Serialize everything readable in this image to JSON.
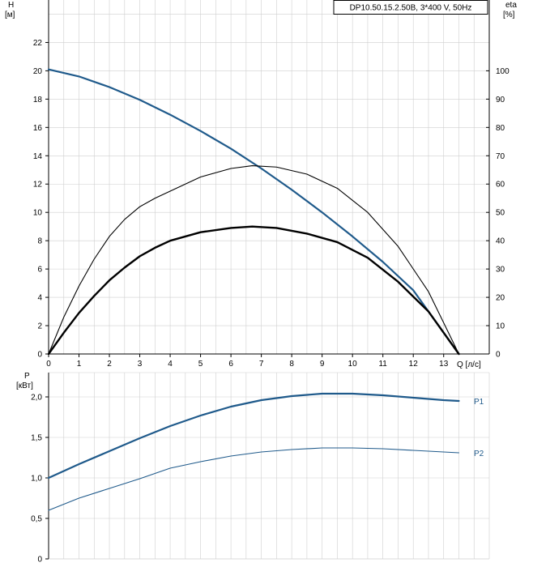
{
  "colors": {
    "blue": "#1f5a8b",
    "black": "#000000",
    "grid": "#cfcfcf"
  },
  "chart_data": [
    {
      "type": "line",
      "title": "DP10.50.15.2.50B, 3*400 V, 50Hz",
      "xlabel": "Q [л/с]",
      "ylabel_left": "H",
      "ylabel_left_unit": "[м]",
      "ylabel_right": "eta",
      "ylabel_right_unit": "[%]",
      "xlim": [
        0,
        14.5
      ],
      "ylim_left": [
        0,
        25
      ],
      "ylim_right": [
        0,
        125
      ],
      "x_ticks": [
        0,
        1,
        2,
        3,
        4,
        5,
        6,
        7,
        8,
        9,
        10,
        11,
        12,
        13
      ],
      "y_left_ticks": [
        0,
        2,
        4,
        6,
        8,
        10,
        12,
        14,
        16,
        18,
        20,
        22
      ],
      "y_right_ticks": [
        0,
        10,
        20,
        30,
        40,
        50,
        60,
        70,
        80,
        90,
        100
      ],
      "grid": true,
      "series": [
        {
          "axis": "left",
          "style": "blue",
          "x": [
            0,
            1,
            2,
            3,
            4,
            5,
            6,
            7,
            8,
            9,
            10,
            11,
            12,
            13,
            13.5
          ],
          "y": [
            20.1,
            19.6,
            18.85,
            17.95,
            16.9,
            15.75,
            14.5,
            13.1,
            11.6,
            10.0,
            8.3,
            6.5,
            4.5,
            1.5,
            0
          ]
        },
        {
          "axis": "right",
          "style": "thin-black",
          "x": [
            0,
            0.5,
            1,
            1.5,
            2,
            2.5,
            3,
            3.5,
            4,
            5,
            6,
            6.7,
            7.5,
            8.5,
            9.5,
            10.5,
            11.5,
            12.5,
            13.5
          ],
          "y": [
            0,
            13,
            24,
            33.5,
            41.5,
            47.5,
            52,
            55,
            57.5,
            62.5,
            65.5,
            66.5,
            66,
            63.5,
            58.5,
            50,
            38,
            22,
            0
          ]
        },
        {
          "axis": "right",
          "style": "thick-black",
          "x": [
            0,
            0.5,
            1,
            1.5,
            2,
            2.5,
            3,
            3.5,
            4,
            5,
            6,
            6.7,
            7.5,
            8.5,
            9.5,
            10.5,
            11.5,
            12.5,
            13.5
          ],
          "y": [
            0,
            7.5,
            14.5,
            20.5,
            26,
            30.5,
            34.5,
            37.5,
            40,
            43,
            44.5,
            45,
            44.5,
            42.5,
            39.5,
            34,
            25.5,
            15,
            0
          ]
        }
      ]
    },
    {
      "type": "line",
      "xlabel": "",
      "ylabel": "P",
      "ylabel_unit": "[кВт]",
      "xlim": [
        0,
        14.5
      ],
      "ylim": [
        0,
        2.3
      ],
      "y_ticks": [
        0,
        0.5,
        1.0,
        1.5,
        2.0
      ],
      "y_tick_labels": [
        "0",
        "0,5",
        "1,0",
        "1,5",
        "2,0"
      ],
      "grid": true,
      "series": [
        {
          "name": "P1",
          "style": "thick-blue",
          "x": [
            0,
            1,
            2,
            3,
            4,
            5,
            6,
            7,
            8,
            9,
            10,
            11,
            12,
            13,
            13.5
          ],
          "y": [
            1.0,
            1.17,
            1.33,
            1.49,
            1.64,
            1.77,
            1.88,
            1.96,
            2.01,
            2.04,
            2.04,
            2.02,
            1.99,
            1.96,
            1.95
          ]
        },
        {
          "name": "P2",
          "style": "thin-blue",
          "x": [
            0,
            1,
            2,
            3,
            4,
            5,
            6,
            7,
            8,
            9,
            10,
            11,
            12,
            13,
            13.5
          ],
          "y": [
            0.6,
            0.75,
            0.87,
            0.99,
            1.12,
            1.2,
            1.27,
            1.32,
            1.35,
            1.37,
            1.37,
            1.36,
            1.34,
            1.32,
            1.31
          ]
        }
      ]
    }
  ]
}
